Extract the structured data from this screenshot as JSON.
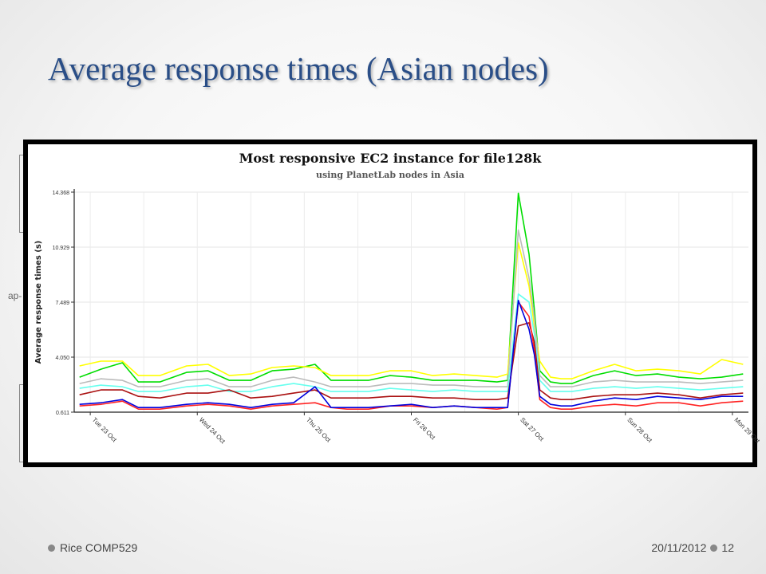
{
  "slide": {
    "title": "Average response times (Asian nodes)",
    "footer_left": "Rice COMP529",
    "footer_date": "20/11/2012",
    "page_number": "12",
    "ghost_label": "ap-"
  },
  "chart_data": {
    "type": "line",
    "title": "Most responsive EC2 instance for file128k",
    "subtitle": "using PlanetLab nodes in Asia",
    "ylabel": "Average response times (s)",
    "xlabel": "",
    "y_ticks": [
      "0.611",
      "4.050",
      "7.489",
      "10.929",
      "14.368"
    ],
    "ylim": [
      0.611,
      14.368
    ],
    "x_ticks": [
      "Tue 23 Oct",
      "Wed 24 Oct",
      "Thu 25 Oct",
      "Fri 26 Oct",
      "Sat 27 Oct",
      "Sun 28 Oct",
      "Mon 29 Oct"
    ],
    "x_tick_days": [
      0,
      1,
      2,
      3,
      4,
      5,
      6
    ],
    "xlim": [
      -0.15,
      6.15
    ],
    "grid": true,
    "series": [
      {
        "color": "#00dd00",
        "x": [
          -0.1,
          0.1,
          0.3,
          0.45,
          0.65,
          0.9,
          1.1,
          1.3,
          1.5,
          1.7,
          1.9,
          2.1,
          2.25,
          2.4,
          2.6,
          2.8,
          3.0,
          3.2,
          3.4,
          3.6,
          3.8,
          3.9,
          4.0,
          4.1,
          4.15,
          4.2,
          4.3,
          4.4,
          4.5,
          4.7,
          4.9,
          5.1,
          5.3,
          5.5,
          5.7,
          5.9,
          6.1
        ],
        "y": [
          2.8,
          3.3,
          3.7,
          2.5,
          2.5,
          3.1,
          3.2,
          2.6,
          2.6,
          3.2,
          3.3,
          3.6,
          2.6,
          2.6,
          2.6,
          2.9,
          2.8,
          2.6,
          2.6,
          2.6,
          2.5,
          2.6,
          14.3,
          10.5,
          7.0,
          3.2,
          2.5,
          2.4,
          2.4,
          2.9,
          3.2,
          2.9,
          3.0,
          2.8,
          2.7,
          2.8,
          3.0
        ]
      },
      {
        "color": "#ffff00",
        "x": [
          -0.1,
          0.1,
          0.3,
          0.45,
          0.65,
          0.9,
          1.1,
          1.3,
          1.5,
          1.7,
          1.9,
          2.1,
          2.25,
          2.4,
          2.6,
          2.8,
          3.0,
          3.2,
          3.4,
          3.6,
          3.8,
          3.9,
          4.0,
          4.1,
          4.15,
          4.2,
          4.3,
          4.4,
          4.5,
          4.7,
          4.9,
          5.1,
          5.3,
          5.5,
          5.7,
          5.9,
          6.1
        ],
        "y": [
          3.5,
          3.8,
          3.8,
          2.9,
          2.9,
          3.5,
          3.6,
          2.9,
          3.0,
          3.4,
          3.5,
          3.4,
          2.9,
          2.9,
          2.9,
          3.2,
          3.2,
          2.9,
          3.0,
          2.9,
          2.8,
          3.0,
          11.2,
          8.5,
          6.0,
          3.8,
          2.8,
          2.7,
          2.7,
          3.2,
          3.6,
          3.2,
          3.3,
          3.2,
          3.0,
          3.9,
          3.6
        ]
      },
      {
        "color": "#bbbbbb",
        "x": [
          -0.1,
          0.1,
          0.3,
          0.45,
          0.65,
          0.9,
          1.1,
          1.3,
          1.5,
          1.7,
          1.9,
          2.1,
          2.25,
          2.4,
          2.6,
          2.8,
          3.0,
          3.2,
          3.4,
          3.6,
          3.8,
          3.9,
          4.0,
          4.1,
          4.15,
          4.2,
          4.3,
          4.4,
          4.5,
          4.7,
          4.9,
          5.1,
          5.3,
          5.5,
          5.7,
          5.9,
          6.1
        ],
        "y": [
          2.4,
          2.7,
          2.6,
          2.2,
          2.2,
          2.6,
          2.7,
          2.2,
          2.2,
          2.6,
          2.8,
          2.5,
          2.2,
          2.2,
          2.2,
          2.4,
          2.4,
          2.3,
          2.3,
          2.2,
          2.2,
          2.2,
          12.0,
          9.0,
          6.5,
          2.9,
          2.2,
          2.2,
          2.2,
          2.5,
          2.6,
          2.5,
          2.5,
          2.5,
          2.4,
          2.5,
          2.6
        ]
      },
      {
        "color": "#66ffee",
        "x": [
          -0.1,
          0.1,
          0.3,
          0.45,
          0.65,
          0.9,
          1.1,
          1.3,
          1.5,
          1.7,
          1.9,
          2.1,
          2.25,
          2.4,
          2.6,
          2.8,
          3.0,
          3.2,
          3.4,
          3.6,
          3.8,
          3.9,
          4.0,
          4.1,
          4.15,
          4.2,
          4.3,
          4.4,
          4.5,
          4.7,
          4.9,
          5.1,
          5.3,
          5.5,
          5.7,
          5.9,
          6.1
        ],
        "y": [
          2.1,
          2.3,
          2.2,
          1.9,
          1.9,
          2.2,
          2.3,
          1.9,
          1.9,
          2.2,
          2.4,
          2.2,
          1.9,
          1.9,
          1.9,
          2.1,
          2.0,
          1.9,
          2.0,
          1.9,
          1.9,
          1.9,
          8.0,
          7.5,
          5.5,
          2.6,
          1.9,
          1.9,
          1.9,
          2.1,
          2.2,
          2.1,
          2.2,
          2.1,
          2.0,
          2.1,
          2.2
        ]
      },
      {
        "color": "#aa1111",
        "x": [
          -0.1,
          0.1,
          0.3,
          0.45,
          0.65,
          0.9,
          1.1,
          1.3,
          1.5,
          1.7,
          1.9,
          2.1,
          2.25,
          2.4,
          2.6,
          2.8,
          3.0,
          3.2,
          3.4,
          3.6,
          3.8,
          3.9,
          4.0,
          4.1,
          4.15,
          4.2,
          4.3,
          4.4,
          4.5,
          4.7,
          4.9,
          5.1,
          5.3,
          5.5,
          5.7,
          5.9,
          6.1
        ],
        "y": [
          1.7,
          2.0,
          2.0,
          1.6,
          1.5,
          1.8,
          1.8,
          2.0,
          1.5,
          1.6,
          1.8,
          2.0,
          1.5,
          1.5,
          1.5,
          1.6,
          1.6,
          1.5,
          1.5,
          1.4,
          1.4,
          1.5,
          6.0,
          6.2,
          5.0,
          2.0,
          1.5,
          1.4,
          1.4,
          1.6,
          1.7,
          1.7,
          1.8,
          1.7,
          1.5,
          1.7,
          1.8
        ]
      },
      {
        "color": "#ff2222",
        "x": [
          -0.1,
          0.1,
          0.3,
          0.45,
          0.65,
          0.9,
          1.1,
          1.3,
          1.5,
          1.7,
          1.9,
          2.1,
          2.25,
          2.4,
          2.6,
          2.8,
          3.0,
          3.2,
          3.4,
          3.6,
          3.8,
          3.9,
          4.0,
          4.1,
          4.15,
          4.2,
          4.3,
          4.4,
          4.5,
          4.7,
          4.9,
          5.1,
          5.3,
          5.5,
          5.7,
          5.9,
          6.1
        ],
        "y": [
          1.0,
          1.1,
          1.3,
          0.8,
          0.8,
          1.0,
          1.1,
          1.0,
          0.8,
          1.0,
          1.1,
          1.2,
          0.9,
          0.8,
          0.8,
          1.0,
          1.0,
          0.9,
          1.0,
          0.9,
          0.8,
          0.9,
          7.5,
          6.6,
          4.5,
          1.4,
          0.9,
          0.8,
          0.8,
          1.0,
          1.1,
          1.0,
          1.2,
          1.2,
          1.0,
          1.2,
          1.3
        ]
      },
      {
        "color": "#0000dd",
        "x": [
          -0.1,
          0.1,
          0.3,
          0.45,
          0.65,
          0.9,
          1.1,
          1.3,
          1.5,
          1.7,
          1.9,
          2.1,
          2.25,
          2.4,
          2.6,
          2.8,
          3.0,
          3.2,
          3.4,
          3.6,
          3.8,
          3.9,
          4.0,
          4.1,
          4.15,
          4.2,
          4.3,
          4.4,
          4.5,
          4.7,
          4.9,
          5.1,
          5.3,
          5.5,
          5.7,
          5.9,
          6.1
        ],
        "y": [
          1.1,
          1.2,
          1.4,
          0.9,
          0.9,
          1.1,
          1.2,
          1.1,
          0.9,
          1.1,
          1.2,
          2.2,
          0.9,
          0.9,
          0.9,
          1.0,
          1.1,
          0.9,
          1.0,
          0.9,
          0.9,
          0.9,
          7.6,
          5.8,
          4.2,
          1.6,
          1.1,
          1.0,
          1.0,
          1.3,
          1.5,
          1.4,
          1.6,
          1.5,
          1.4,
          1.6,
          1.6
        ]
      }
    ]
  }
}
